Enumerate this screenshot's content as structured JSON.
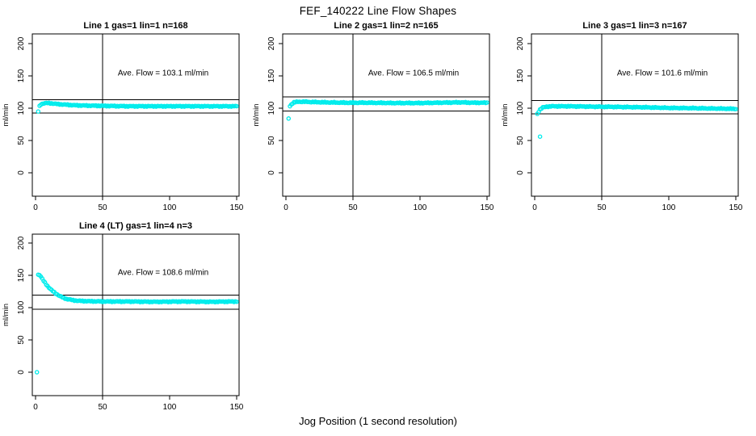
{
  "figure": {
    "title": "FEF_140222  Line Flow Shapes",
    "xlabel": "Jog Position (1 second resolution)",
    "ylabel": "ml/min",
    "marker": "open-circle",
    "point_color": "#00ECEC",
    "axis_color": "#000000",
    "background_color": "#FFFFFF"
  },
  "axes": {
    "x_ticks": [
      0,
      50,
      100,
      150
    ],
    "y_ticks": [
      0,
      50,
      100,
      150,
      200
    ],
    "xlim": [
      0,
      152
    ],
    "ylim": [
      0,
      200
    ],
    "grid": false
  },
  "chart_data": [
    {
      "type": "scatter",
      "title": "Line 1 gas=1 lin=1 n=168",
      "n": 168,
      "ave_flow": 103.1,
      "annotation": "Ave. Flow =  103.1  ml/min",
      "ref_line_x": 50,
      "ref_lines_y": [
        113.4,
        92.8
      ],
      "x_step": 1,
      "keypoints": [
        [
          2,
          95
        ],
        [
          3,
          103
        ],
        [
          4,
          106
        ],
        [
          6,
          107.5
        ],
        [
          9,
          108
        ],
        [
          12,
          107.5
        ],
        [
          16,
          106.5
        ],
        [
          22,
          105.5
        ],
        [
          30,
          104.5
        ],
        [
          40,
          104
        ],
        [
          55,
          103.5
        ],
        [
          70,
          103
        ],
        [
          90,
          103
        ],
        [
          110,
          103
        ],
        [
          130,
          103
        ],
        [
          150,
          103
        ]
      ],
      "extra_points": []
    },
    {
      "type": "scatter",
      "title": "Line 2 gas=1 lin=2 n=165",
      "n": 165,
      "ave_flow": 106.5,
      "annotation": "Ave. Flow =  106.5  ml/min",
      "ref_line_x": 50,
      "ref_lines_y": [
        117.2,
        95.9
      ],
      "x_step": 1,
      "keypoints": [
        [
          3,
          103
        ],
        [
          4,
          106
        ],
        [
          6,
          109
        ],
        [
          9,
          110
        ],
        [
          14,
          110
        ],
        [
          20,
          109.5
        ],
        [
          30,
          109
        ],
        [
          45,
          108.5
        ],
        [
          60,
          108.5
        ],
        [
          80,
          108
        ],
        [
          100,
          108
        ],
        [
          115,
          108.5
        ],
        [
          130,
          109
        ],
        [
          140,
          108.5
        ],
        [
          150,
          108.5
        ]
      ],
      "extra_points": [
        [
          2,
          84
        ]
      ]
    },
    {
      "type": "scatter",
      "title": "Line 3 gas=1 lin=3 n=167",
      "n": 167,
      "ave_flow": 101.6,
      "annotation": "Ave. Flow =  101.6  ml/min",
      "ref_line_x": 50,
      "ref_lines_y": [
        111.8,
        91.4
      ],
      "x_step": 1,
      "keypoints": [
        [
          2,
          91
        ],
        [
          3,
          95
        ],
        [
          4,
          98
        ],
        [
          6,
          101
        ],
        [
          9,
          102.5
        ],
        [
          14,
          103
        ],
        [
          25,
          103
        ],
        [
          40,
          102.5
        ],
        [
          60,
          102
        ],
        [
          80,
          101.5
        ],
        [
          100,
          100.5
        ],
        [
          120,
          100
        ],
        [
          135,
          99.5
        ],
        [
          150,
          99
        ]
      ],
      "extra_points": [
        [
          4,
          56
        ]
      ]
    },
    {
      "type": "scatter",
      "title": "Line 4 (LT) gas=1 lin=4 n=3",
      "n": 3,
      "ave_flow": 108.6,
      "annotation": "Ave. Flow =  108.6  ml/min",
      "ref_line_x": 50,
      "ref_lines_y": [
        119.5,
        97.7
      ],
      "x_step": 1,
      "keypoints": [
        [
          2,
          151
        ],
        [
          3,
          150.5
        ],
        [
          4,
          148
        ],
        [
          5,
          144.5
        ],
        [
          6,
          141.5
        ],
        [
          8,
          136
        ],
        [
          10,
          131
        ],
        [
          12,
          127
        ],
        [
          15,
          122
        ],
        [
          18,
          118
        ],
        [
          21,
          115
        ],
        [
          24,
          113
        ],
        [
          28,
          111.5
        ],
        [
          32,
          110.5
        ],
        [
          38,
          110
        ],
        [
          50,
          109.5
        ],
        [
          70,
          109.5
        ],
        [
          90,
          109
        ],
        [
          110,
          109.5
        ],
        [
          130,
          109
        ],
        [
          150,
          109.5
        ]
      ],
      "extra_points": [
        [
          1,
          0
        ]
      ]
    }
  ]
}
